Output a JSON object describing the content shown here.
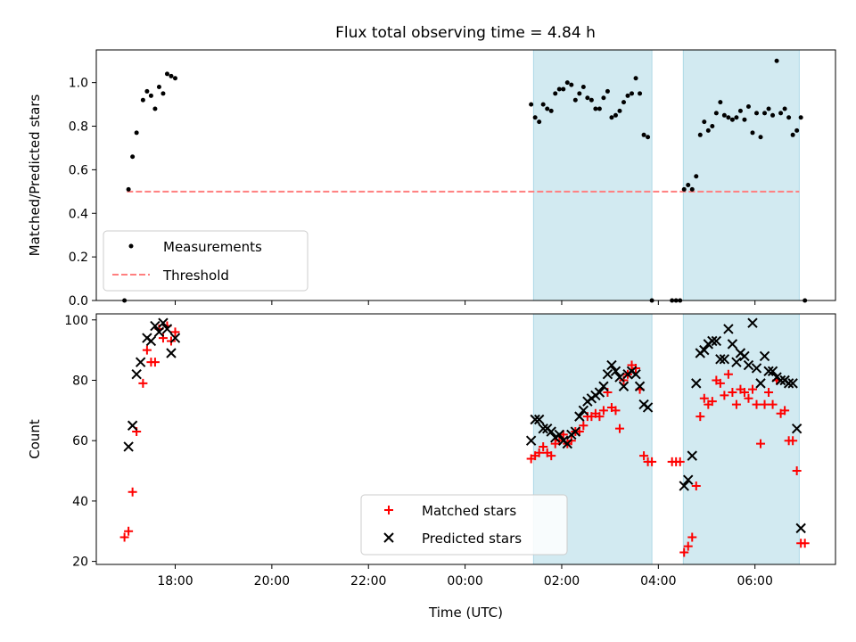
{
  "title": "Flux total observing time = 4.84 h",
  "colors": {
    "measurements": "#000000",
    "threshold": "#ff7f7f",
    "matched": "#ff0000",
    "predicted": "#000000",
    "span": "#add8e6"
  },
  "chart_data": [
    {
      "type": "scatter",
      "ylabel": "Matched/Predicted stars",
      "ylim": [
        0,
        1.15
      ],
      "yticks": [
        0.0,
        0.2,
        0.4,
        0.6,
        0.8,
        1.0
      ],
      "ytick_labels": [
        "0.0",
        "0.2",
        "0.4",
        "0.6",
        "0.8",
        "1.0"
      ],
      "legend_position": "lower-left",
      "shaded_spans": [
        [
          "01:25",
          "03:52"
        ],
        [
          "04:31",
          "06:55"
        ]
      ],
      "threshold": {
        "name": "Threshold",
        "value": 0.5,
        "x_range": [
          "17:00",
          "06:55"
        ]
      },
      "series": [
        {
          "name": "Measurements",
          "marker": "dot",
          "points": [
            [
              "16:57",
              0.0
            ],
            [
              "17:02",
              0.51
            ],
            [
              "17:07",
              0.66
            ],
            [
              "17:12",
              0.77
            ],
            [
              "17:20",
              0.92
            ],
            [
              "17:25",
              0.96
            ],
            [
              "17:30",
              0.94
            ],
            [
              "17:35",
              0.88
            ],
            [
              "17:40",
              0.98
            ],
            [
              "17:45",
              0.95
            ],
            [
              "17:50",
              1.04
            ],
            [
              "17:55",
              1.03
            ],
            [
              "18:00",
              1.02
            ],
            [
              "01:22",
              0.9
            ],
            [
              "01:27",
              0.84
            ],
            [
              "01:32",
              0.82
            ],
            [
              "01:37",
              0.9
            ],
            [
              "01:42",
              0.88
            ],
            [
              "01:47",
              0.87
            ],
            [
              "01:52",
              0.95
            ],
            [
              "01:57",
              0.97
            ],
            [
              "02:02",
              0.97
            ],
            [
              "02:07",
              1.0
            ],
            [
              "02:12",
              0.99
            ],
            [
              "02:17",
              0.92
            ],
            [
              "02:22",
              0.95
            ],
            [
              "02:27",
              0.98
            ],
            [
              "02:32",
              0.93
            ],
            [
              "02:37",
              0.92
            ],
            [
              "02:42",
              0.88
            ],
            [
              "02:47",
              0.88
            ],
            [
              "02:52",
              0.93
            ],
            [
              "02:57",
              0.96
            ],
            [
              "03:02",
              0.84
            ],
            [
              "03:07",
              0.85
            ],
            [
              "03:12",
              0.87
            ],
            [
              "03:17",
              0.91
            ],
            [
              "03:22",
              0.94
            ],
            [
              "03:27",
              0.95
            ],
            [
              "03:32",
              1.02
            ],
            [
              "03:37",
              0.95
            ],
            [
              "03:42",
              0.76
            ],
            [
              "03:47",
              0.75
            ],
            [
              "03:52",
              0.0
            ],
            [
              "04:17",
              0.0
            ],
            [
              "04:22",
              0.0
            ],
            [
              "04:27",
              0.0
            ],
            [
              "04:32",
              0.51
            ],
            [
              "04:37",
              0.53
            ],
            [
              "04:42",
              0.51
            ],
            [
              "04:47",
              0.57
            ],
            [
              "04:52",
              0.76
            ],
            [
              "04:57",
              0.82
            ],
            [
              "05:02",
              0.78
            ],
            [
              "05:07",
              0.8
            ],
            [
              "05:12",
              0.86
            ],
            [
              "05:17",
              0.91
            ],
            [
              "05:22",
              0.85
            ],
            [
              "05:27",
              0.84
            ],
            [
              "05:32",
              0.83
            ],
            [
              "05:37",
              0.84
            ],
            [
              "05:42",
              0.87
            ],
            [
              "05:47",
              0.83
            ],
            [
              "05:52",
              0.89
            ],
            [
              "05:57",
              0.77
            ],
            [
              "06:02",
              0.86
            ],
            [
              "06:07",
              0.75
            ],
            [
              "06:12",
              0.86
            ],
            [
              "06:17",
              0.88
            ],
            [
              "06:22",
              0.85
            ],
            [
              "06:27",
              1.1
            ],
            [
              "06:32",
              0.86
            ],
            [
              "06:37",
              0.88
            ],
            [
              "06:42",
              0.84
            ],
            [
              "06:47",
              0.76
            ],
            [
              "06:52",
              0.78
            ],
            [
              "06:57",
              0.84
            ],
            [
              "07:02",
              0.0
            ]
          ]
        }
      ]
    },
    {
      "type": "scatter",
      "ylabel": "Count",
      "xlabel": "Time (UTC)",
      "ylim": [
        19,
        102
      ],
      "yticks": [
        20,
        40,
        60,
        80,
        100
      ],
      "ytick_labels": [
        "20",
        "40",
        "60",
        "80",
        "100"
      ],
      "xticks": [
        "18:00",
        "20:00",
        "22:00",
        "00:00",
        "02:00",
        "04:00",
        "06:00"
      ],
      "legend_position": "lower-center",
      "shaded_spans": [
        [
          "01:25",
          "03:52"
        ],
        [
          "04:31",
          "06:55"
        ]
      ],
      "series": [
        {
          "name": "Matched stars",
          "marker": "plus",
          "points": [
            [
              "16:57",
              28
            ],
            [
              "17:02",
              30
            ],
            [
              "17:07",
              43
            ],
            [
              "17:12",
              63
            ],
            [
              "17:20",
              79
            ],
            [
              "17:25",
              90
            ],
            [
              "17:30",
              86
            ],
            [
              "17:35",
              86
            ],
            [
              "17:40",
              97
            ],
            [
              "17:45",
              94
            ],
            [
              "17:50",
              98
            ],
            [
              "17:55",
              93
            ],
            [
              "18:00",
              96
            ],
            [
              "01:22",
              54
            ],
            [
              "01:27",
              55
            ],
            [
              "01:32",
              56
            ],
            [
              "01:37",
              58
            ],
            [
              "01:42",
              56
            ],
            [
              "01:47",
              55
            ],
            [
              "01:52",
              59
            ],
            [
              "01:57",
              60
            ],
            [
              "02:02",
              62
            ],
            [
              "02:07",
              59
            ],
            [
              "02:12",
              60
            ],
            [
              "02:17",
              63
            ],
            [
              "02:22",
              63
            ],
            [
              "02:27",
              65
            ],
            [
              "02:32",
              68
            ],
            [
              "02:37",
              68
            ],
            [
              "02:42",
              69
            ],
            [
              "02:47",
              68
            ],
            [
              "02:52",
              70
            ],
            [
              "02:57",
              76
            ],
            [
              "03:02",
              71
            ],
            [
              "03:07",
              70
            ],
            [
              "03:12",
              64
            ],
            [
              "03:17",
              80
            ],
            [
              "03:22",
              82
            ],
            [
              "03:27",
              85
            ],
            [
              "03:32",
              84
            ],
            [
              "03:37",
              77
            ],
            [
              "03:42",
              55
            ],
            [
              "03:47",
              53
            ],
            [
              "03:52",
              53
            ],
            [
              "04:17",
              53
            ],
            [
              "04:22",
              53
            ],
            [
              "04:27",
              53
            ],
            [
              "04:32",
              23
            ],
            [
              "04:37",
              25
            ],
            [
              "04:42",
              28
            ],
            [
              "04:47",
              45
            ],
            [
              "04:52",
              68
            ],
            [
              "04:57",
              74
            ],
            [
              "05:02",
              72
            ],
            [
              "05:07",
              73
            ],
            [
              "05:12",
              80
            ],
            [
              "05:17",
              79
            ],
            [
              "05:22",
              75
            ],
            [
              "05:27",
              82
            ],
            [
              "05:32",
              76
            ],
            [
              "05:37",
              72
            ],
            [
              "05:42",
              77
            ],
            [
              "05:47",
              76
            ],
            [
              "05:52",
              74
            ],
            [
              "05:57",
              77
            ],
            [
              "06:02",
              72
            ],
            [
              "06:07",
              59
            ],
            [
              "06:12",
              72
            ],
            [
              "06:17",
              76
            ],
            [
              "06:22",
              72
            ],
            [
              "06:27",
              80
            ],
            [
              "06:32",
              69
            ],
            [
              "06:37",
              70
            ],
            [
              "06:42",
              60
            ],
            [
              "06:47",
              60
            ],
            [
              "06:52",
              50
            ],
            [
              "06:57",
              26
            ],
            [
              "07:02",
              26
            ]
          ]
        },
        {
          "name": "Predicted stars",
          "marker": "x",
          "points": [
            [
              "17:02",
              58
            ],
            [
              "17:07",
              65
            ],
            [
              "17:12",
              82
            ],
            [
              "17:17",
              86
            ],
            [
              "17:25",
              94
            ],
            [
              "17:30",
              93
            ],
            [
              "17:35",
              98
            ],
            [
              "17:40",
              96
            ],
            [
              "17:45",
              99
            ],
            [
              "17:50",
              97
            ],
            [
              "17:55",
              89
            ],
            [
              "18:00",
              94
            ],
            [
              "01:22",
              60
            ],
            [
              "01:27",
              67
            ],
            [
              "01:32",
              67
            ],
            [
              "01:37",
              64
            ],
            [
              "01:42",
              64
            ],
            [
              "01:47",
              63
            ],
            [
              "01:52",
              61
            ],
            [
              "01:57",
              62
            ],
            [
              "02:02",
              60
            ],
            [
              "02:07",
              59
            ],
            [
              "02:12",
              62
            ],
            [
              "02:17",
              63
            ],
            [
              "02:22",
              68
            ],
            [
              "02:27",
              70
            ],
            [
              "02:32",
              73
            ],
            [
              "02:37",
              74
            ],
            [
              "02:42",
              75
            ],
            [
              "02:47",
              76
            ],
            [
              "02:52",
              78
            ],
            [
              "02:57",
              82
            ],
            [
              "03:02",
              85
            ],
            [
              "03:07",
              83
            ],
            [
              "03:12",
              81
            ],
            [
              "03:17",
              78
            ],
            [
              "03:22",
              82
            ],
            [
              "03:27",
              83
            ],
            [
              "03:32",
              82
            ],
            [
              "03:37",
              78
            ],
            [
              "03:42",
              72
            ],
            [
              "03:47",
              71
            ],
            [
              "04:32",
              45
            ],
            [
              "04:37",
              47
            ],
            [
              "04:42",
              55
            ],
            [
              "04:47",
              79
            ],
            [
              "04:52",
              89
            ],
            [
              "04:57",
              90
            ],
            [
              "05:02",
              92
            ],
            [
              "05:07",
              93
            ],
            [
              "05:12",
              93
            ],
            [
              "05:17",
              87
            ],
            [
              "05:22",
              87
            ],
            [
              "05:27",
              97
            ],
            [
              "05:32",
              92
            ],
            [
              "05:37",
              86
            ],
            [
              "05:42",
              89
            ],
            [
              "05:47",
              88
            ],
            [
              "05:52",
              85
            ],
            [
              "05:57",
              99
            ],
            [
              "06:02",
              84
            ],
            [
              "06:07",
              79
            ],
            [
              "06:12",
              88
            ],
            [
              "06:17",
              83
            ],
            [
              "06:22",
              83
            ],
            [
              "06:27",
              81
            ],
            [
              "06:32",
              80
            ],
            [
              "06:37",
              80
            ],
            [
              "06:42",
              79
            ],
            [
              "06:47",
              79
            ],
            [
              "06:52",
              64
            ],
            [
              "06:57",
              31
            ]
          ]
        }
      ]
    }
  ]
}
